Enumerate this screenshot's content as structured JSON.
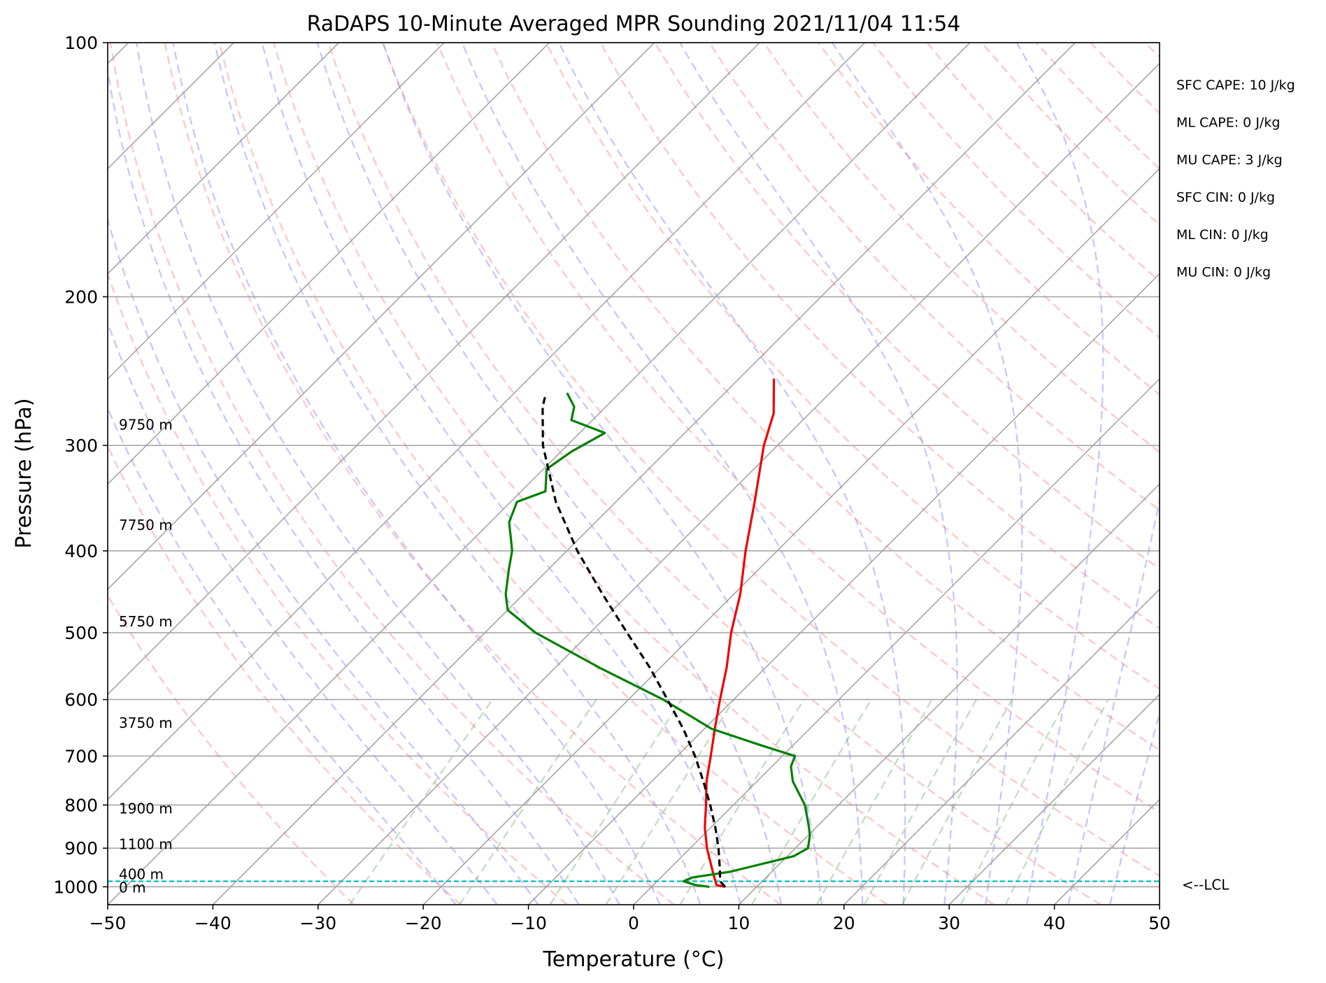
{
  "chart_data": {
    "type": "line",
    "title": "RaDAPS 10-Minute Averaged MPR Sounding 2021/11/04 11:54",
    "xlabel": "Temperature (°C)",
    "ylabel": "Pressure (hPa)",
    "xlim": [
      -50,
      50
    ],
    "ylim": [
      1050,
      100
    ],
    "y_scale": "log",
    "skew": "skew-T log-P",
    "x_ticks": [
      "−50",
      "−40",
      "−30",
      "−20",
      "−10",
      "0",
      "10",
      "20",
      "30",
      "40",
      "50"
    ],
    "y_ticks": [
      "100",
      "200",
      "300",
      "400",
      "500",
      "600",
      "700",
      "800",
      "900",
      "1000"
    ],
    "grid": true,
    "series": [
      {
        "kind": "temperature",
        "color": "#ee0000",
        "points": [
          [
            1000,
            7.0
          ],
          [
            995,
            6.0
          ],
          [
            960,
            4.4
          ],
          [
            900,
            1.6
          ],
          [
            850,
            -0.6
          ],
          [
            800,
            -2.6
          ],
          [
            750,
            -4.8
          ],
          [
            700,
            -6.8
          ],
          [
            650,
            -9.0
          ],
          [
            600,
            -11.3
          ],
          [
            550,
            -13.7
          ],
          [
            500,
            -16.6
          ],
          [
            450,
            -19.4
          ],
          [
            400,
            -23.0
          ],
          [
            350,
            -26.8
          ],
          [
            300,
            -31.3
          ],
          [
            275,
            -33.4
          ],
          [
            250,
            -36.7
          ]
        ]
      },
      {
        "kind": "dewpoint",
        "color": "#008000",
        "points": [
          [
            1000,
            5.5
          ],
          [
            995,
            4.0
          ],
          [
            985,
            2.5
          ],
          [
            975,
            3.0
          ],
          [
            960,
            6.0
          ],
          [
            920,
            10.6
          ],
          [
            900,
            11.2
          ],
          [
            870,
            10.2
          ],
          [
            850,
            9.3
          ],
          [
            800,
            6.8
          ],
          [
            750,
            3.4
          ],
          [
            720,
            1.8
          ],
          [
            700,
            1.2
          ],
          [
            680,
            -3.0
          ],
          [
            650,
            -9.3
          ],
          [
            600,
            -16.7
          ],
          [
            550,
            -25.8
          ],
          [
            500,
            -35.2
          ],
          [
            470,
            -40.0
          ],
          [
            450,
            -41.7
          ],
          [
            420,
            -43.8
          ],
          [
            400,
            -45.2
          ],
          [
            370,
            -48.2
          ],
          [
            350,
            -49.4
          ],
          [
            340,
            -47.7
          ],
          [
            320,
            -49.7
          ],
          [
            305,
            -49.0
          ],
          [
            290,
            -47.6
          ],
          [
            280,
            -52.0
          ],
          [
            270,
            -53.0
          ],
          [
            260,
            -55.0
          ]
        ]
      },
      {
        "kind": "parcel",
        "color": "#000000",
        "points": [
          [
            1000,
            7.0
          ],
          [
            985,
            6.0
          ],
          [
            950,
            4.7
          ],
          [
            900,
            2.7
          ],
          [
            850,
            0.4
          ],
          [
            800,
            -2.2
          ],
          [
            750,
            -5.1
          ],
          [
            700,
            -8.3
          ],
          [
            650,
            -12.0
          ],
          [
            600,
            -16.3
          ],
          [
            550,
            -21.0
          ],
          [
            500,
            -26.5
          ],
          [
            450,
            -32.5
          ],
          [
            400,
            -39.0
          ],
          [
            350,
            -45.7
          ],
          [
            300,
            -52.3
          ],
          [
            270,
            -56.0
          ],
          [
            260,
            -57.0
          ]
        ]
      }
    ],
    "lcl": {
      "pressure": 985,
      "label": "<--LCL",
      "color": "#00bfbf"
    },
    "altitude_labels": [
      {
        "pressure": 283,
        "text": "9750 m"
      },
      {
        "pressure": 372,
        "text": "7750 m"
      },
      {
        "pressure": 484,
        "text": "5750 m"
      },
      {
        "pressure": 638,
        "text": "3750 m"
      },
      {
        "pressure": 806,
        "text": "1900 m"
      },
      {
        "pressure": 889,
        "text": "1100 m"
      },
      {
        "pressure": 965,
        "text": "400 m"
      },
      {
        "pressure": 1000,
        "text": "0 m"
      }
    ],
    "annotations": [
      "SFC CAPE: 10 J/kg",
      "ML CAPE: 0 J/kg",
      "MU CAPE: 3 J/kg",
      "SFC CIN: 0 J/kg",
      "ML CIN: 0 J/kg",
      "MU CIN: 0 J/kg"
    ],
    "background_lines": {
      "dry_adiabats": {
        "color": "#ff8080",
        "style": "dashed"
      },
      "moist_adiabats": {
        "color": "#8080ff",
        "style": "dashed"
      },
      "mixing_ratio": {
        "color": "#60b060",
        "style": "dashed"
      },
      "isotherms": {
        "color": "#a0a0a0",
        "style": "solid"
      }
    }
  }
}
